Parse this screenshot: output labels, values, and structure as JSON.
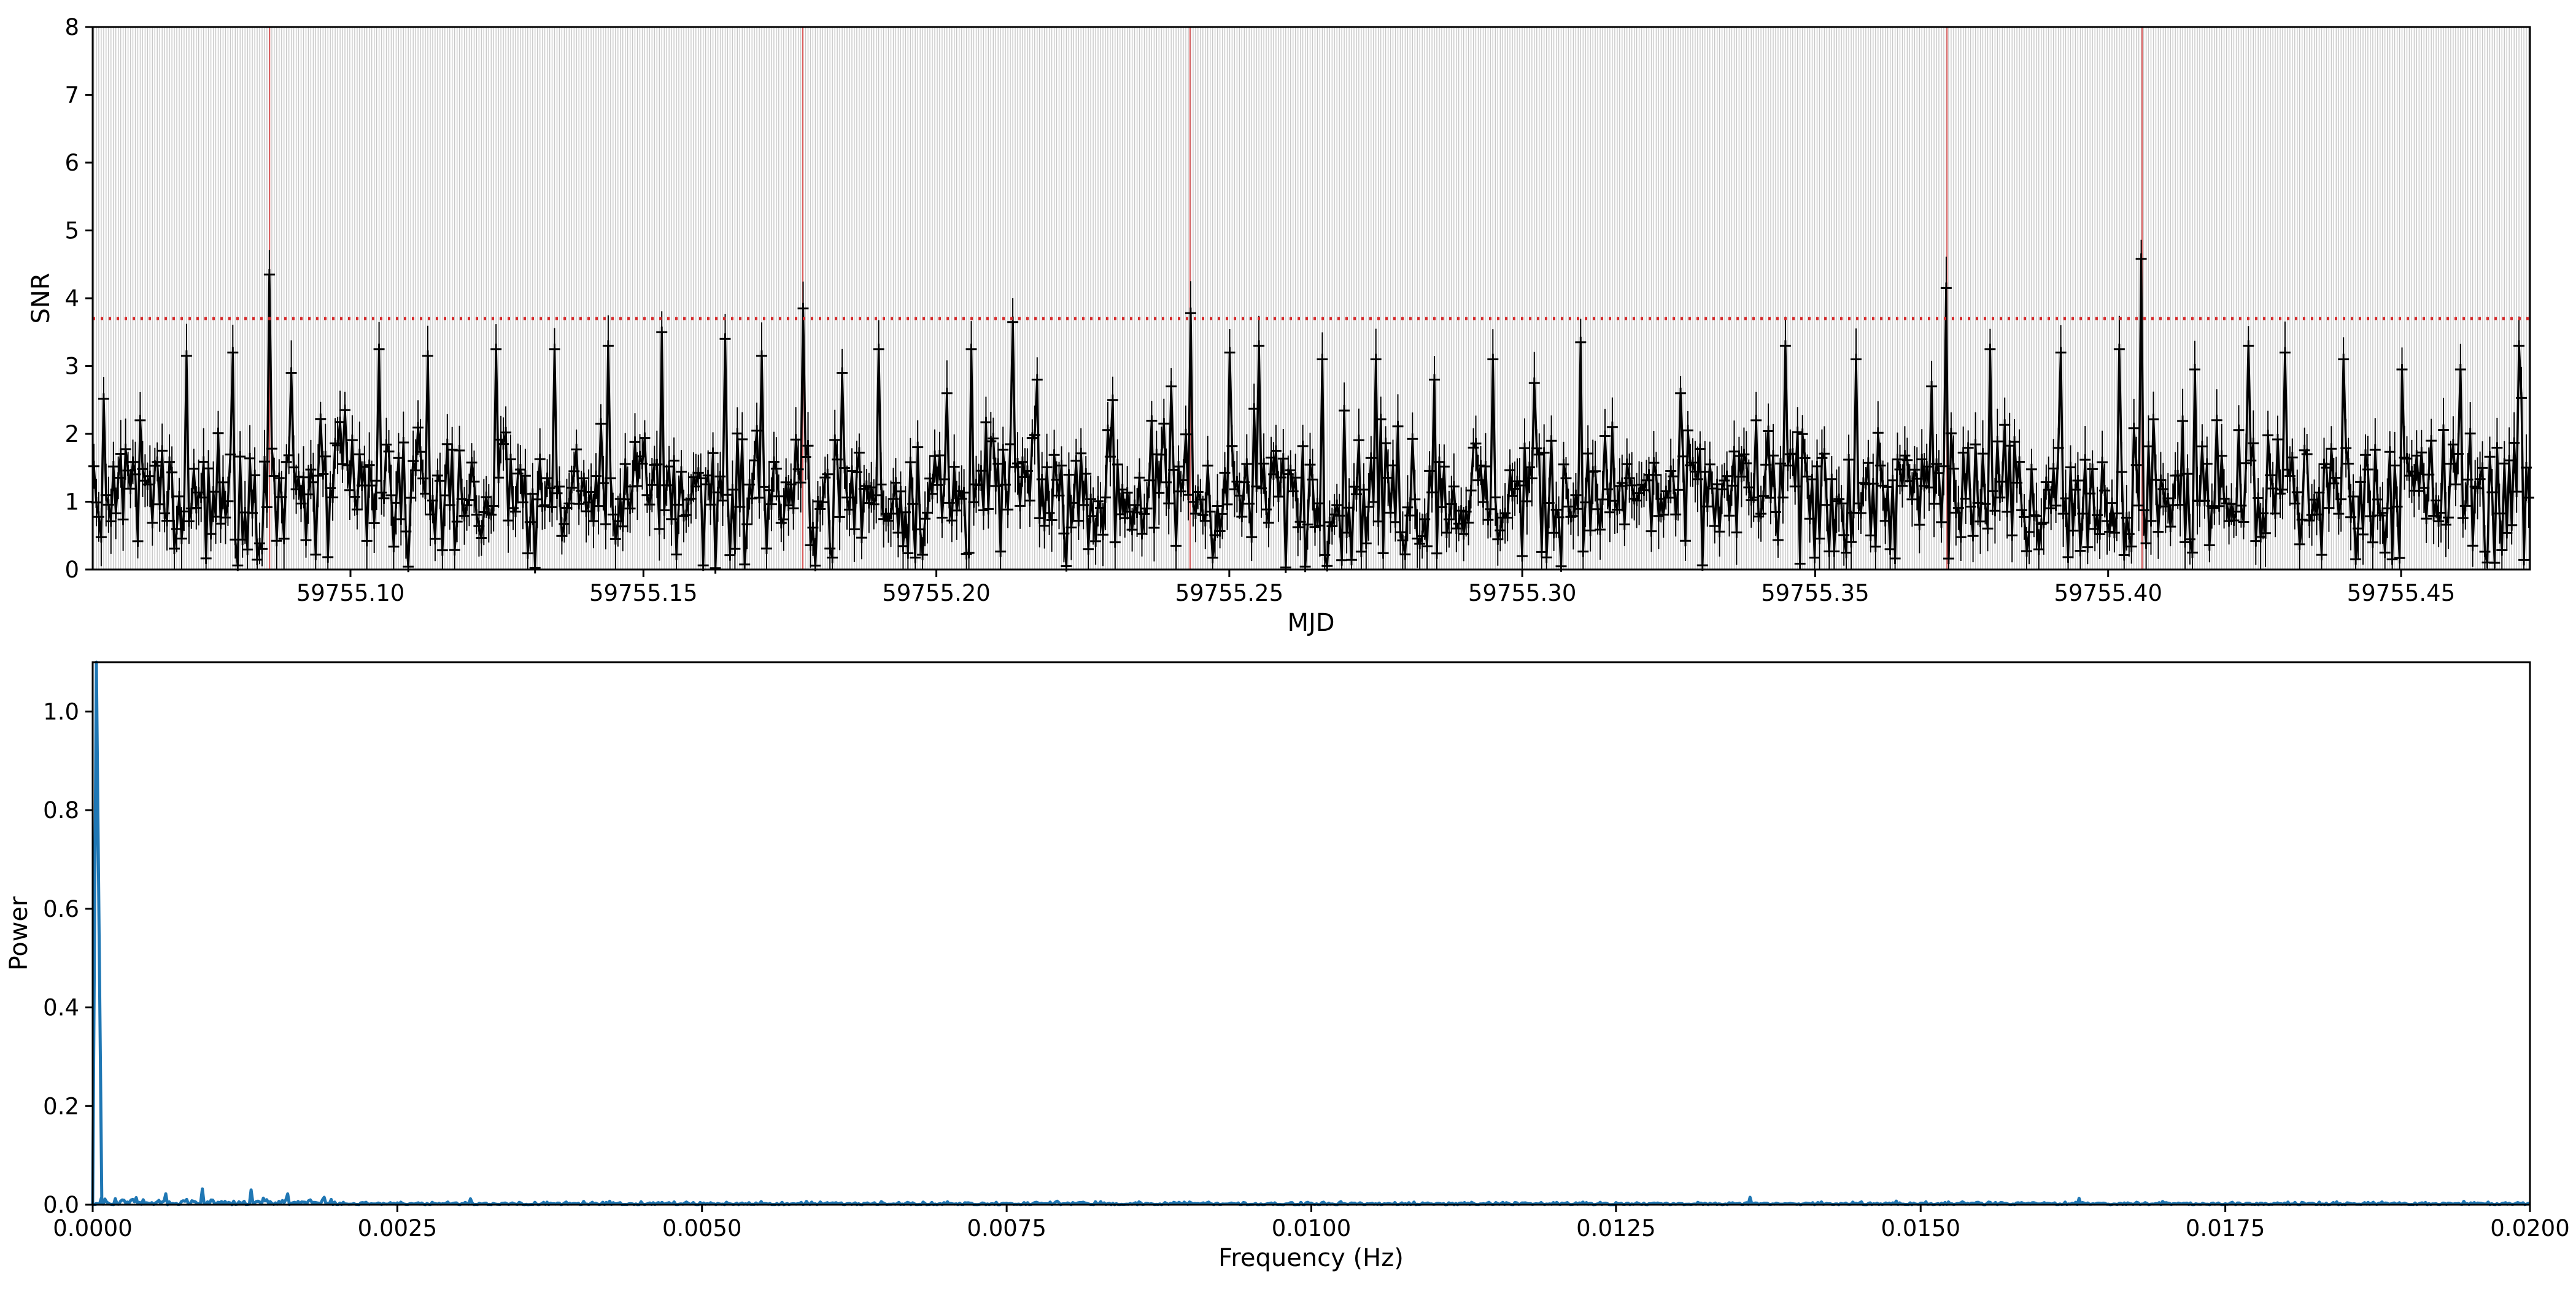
{
  "chart_data": [
    {
      "type": "line",
      "xlabel": "MJD",
      "ylabel": "SNR",
      "xlim": [
        59755.056,
        59755.472
      ],
      "ylim": [
        0,
        8
      ],
      "xticks": [
        "59755.10",
        "59755.15",
        "59755.20",
        "59755.25",
        "59755.30",
        "59755.35",
        "59755.40",
        "59755.45"
      ],
      "xtick_values": [
        59755.1,
        59755.15,
        59755.2,
        59755.25,
        59755.3,
        59755.35,
        59755.4,
        59755.45
      ],
      "yticks": [
        "0",
        "1",
        "2",
        "3",
        "4",
        "5",
        "6",
        "7",
        "8"
      ],
      "threshold": 3.7,
      "series_color": "#000000",
      "threshold_color": "#d62728",
      "vertical_grid_color": "#c8c8c8",
      "grid": "vertical lines at each sample (grey), red verticals at candidates",
      "candidates": [
        {
          "x": 59755.0862,
          "y": 4.35
        },
        {
          "x": 59755.1772,
          "y": 3.85
        },
        {
          "x": 59755.2433,
          "y": 3.78
        },
        {
          "x": 59755.3725,
          "y": 4.15
        },
        {
          "x": 59755.4058,
          "y": 4.58
        }
      ],
      "peaks": [
        {
          "x": 59755.064,
          "y": 2.2
        },
        {
          "x": 59755.072,
          "y": 3.15
        },
        {
          "x": 59755.08,
          "y": 3.2
        },
        {
          "x": 59755.09,
          "y": 2.9
        },
        {
          "x": 59755.099,
          "y": 2.35
        },
        {
          "x": 59755.105,
          "y": 3.25
        },
        {
          "x": 59755.113,
          "y": 3.15
        },
        {
          "x": 59755.125,
          "y": 3.25
        },
        {
          "x": 59755.135,
          "y": 3.25
        },
        {
          "x": 59755.144,
          "y": 3.3
        },
        {
          "x": 59755.153,
          "y": 3.5
        },
        {
          "x": 59755.164,
          "y": 3.4
        },
        {
          "x": 59755.17,
          "y": 3.15
        },
        {
          "x": 59755.184,
          "y": 2.9
        },
        {
          "x": 59755.19,
          "y": 3.25
        },
        {
          "x": 59755.202,
          "y": 2.6
        },
        {
          "x": 59755.206,
          "y": 3.25
        },
        {
          "x": 59755.213,
          "y": 3.65
        },
        {
          "x": 59755.217,
          "y": 2.8
        },
        {
          "x": 59755.23,
          "y": 2.5
        },
        {
          "x": 59755.24,
          "y": 2.7
        },
        {
          "x": 59755.25,
          "y": 3.2
        },
        {
          "x": 59755.255,
          "y": 3.3
        },
        {
          "x": 59755.266,
          "y": 3.1
        },
        {
          "x": 59755.275,
          "y": 3.1
        },
        {
          "x": 59755.285,
          "y": 2.8
        },
        {
          "x": 59755.295,
          "y": 3.1
        },
        {
          "x": 59755.302,
          "y": 2.75
        },
        {
          "x": 59755.31,
          "y": 3.35
        },
        {
          "x": 59755.327,
          "y": 2.6
        },
        {
          "x": 59755.34,
          "y": 2.2
        },
        {
          "x": 59755.345,
          "y": 3.3
        },
        {
          "x": 59755.357,
          "y": 3.1
        },
        {
          "x": 59755.37,
          "y": 2.7
        },
        {
          "x": 59755.38,
          "y": 3.25
        },
        {
          "x": 59755.392,
          "y": 3.2
        },
        {
          "x": 59755.402,
          "y": 3.25
        },
        {
          "x": 59755.415,
          "y": 2.95
        },
        {
          "x": 59755.424,
          "y": 3.3
        },
        {
          "x": 59755.43,
          "y": 3.2
        },
        {
          "x": 59755.44,
          "y": 3.1
        },
        {
          "x": 59755.45,
          "y": 2.95
        },
        {
          "x": 59755.46,
          "y": 2.95
        },
        {
          "x": 59755.47,
          "y": 3.3
        }
      ],
      "baseline_mean": 1.1,
      "baseline_std": 0.7
    },
    {
      "type": "line",
      "xlabel": "Frequency (Hz)",
      "ylabel": "Power",
      "xlim": [
        0,
        0.02
      ],
      "ylim": [
        0,
        1.1
      ],
      "xticks": [
        "0.0000",
        "0.0025",
        "0.0050",
        "0.0075",
        "0.0100",
        "0.0125",
        "0.0150",
        "0.0175",
        "0.0200"
      ],
      "xtick_values": [
        0,
        0.0025,
        0.005,
        0.0075,
        0.01,
        0.0125,
        0.015,
        0.0175,
        0.02
      ],
      "yticks": [
        "0.0",
        "0.2",
        "0.4",
        "0.6",
        "0.8",
        "1.0"
      ],
      "ytick_values": [
        0,
        0.2,
        0.4,
        0.6,
        0.8,
        1.0
      ],
      "series_color": "#1f77b4",
      "spike": {
        "x": 3e-05,
        "y": 1.1
      },
      "features": [
        {
          "x": 0.0006,
          "y": 0.022
        },
        {
          "x": 0.0009,
          "y": 0.032
        },
        {
          "x": 0.0013,
          "y": 0.03
        },
        {
          "x": 0.0016,
          "y": 0.022
        },
        {
          "x": 0.0019,
          "y": 0.015
        },
        {
          "x": 0.0031,
          "y": 0.012
        },
        {
          "x": 0.0136,
          "y": 0.015
        },
        {
          "x": 0.0163,
          "y": 0.013
        }
      ]
    }
  ]
}
